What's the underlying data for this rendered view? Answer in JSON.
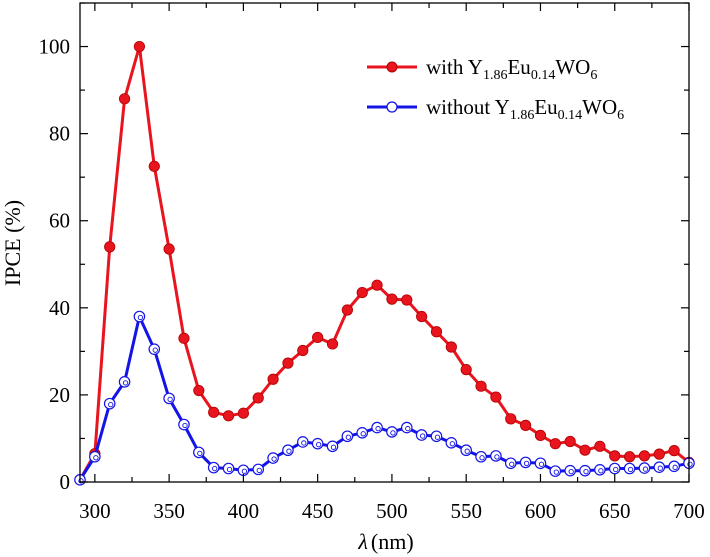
{
  "chart_data": {
    "type": "line",
    "xlabel": {
      "symbol": "λ",
      "unit": "(nm)"
    },
    "ylabel": "IPCE (%)",
    "xlim": [
      290,
      700
    ],
    "ylim": [
      0,
      110
    ],
    "xticks": [
      300,
      350,
      400,
      450,
      500,
      550,
      600,
      650,
      700
    ],
    "yticks": [
      0,
      20,
      40,
      60,
      80,
      100
    ],
    "grid": false,
    "legend_position": "top-right",
    "series": [
      {
        "name": "with Y1.86Eu0.14WO6",
        "legend": {
          "prefix": "with Y",
          "sub1": "1.86",
          "mid": "Eu",
          "sub2": "0.14",
          "suffix": "WO",
          "sub3": "6"
        },
        "color": "#e8141e",
        "marker": "filled-circle",
        "x": [
          290,
          300,
          310,
          320,
          330,
          340,
          350,
          360,
          370,
          380,
          390,
          400,
          410,
          420,
          430,
          440,
          450,
          460,
          470,
          480,
          490,
          500,
          510,
          520,
          530,
          540,
          550,
          560,
          570,
          580,
          590,
          600,
          610,
          620,
          630,
          640,
          650,
          660,
          670,
          680,
          690,
          700
        ],
        "values": [
          0.5,
          6.5,
          54,
          88,
          100,
          72.5,
          53.5,
          33,
          21,
          16,
          15.2,
          15.8,
          19.3,
          23.6,
          27.3,
          30.2,
          33.2,
          31.7,
          39.5,
          43.5,
          45.2,
          42,
          41.8,
          38,
          34.5,
          31,
          25.8,
          22,
          19.5,
          14.5,
          13,
          10.7,
          8.8,
          9.3,
          7.3,
          8.2,
          6,
          5.8,
          6,
          6.4,
          7.2,
          4.5
        ]
      },
      {
        "name": "without Y1.86Eu0.14WO6",
        "legend": {
          "prefix": "without Y",
          "sub1": "1.86",
          "mid": "Eu",
          "sub2": "0.14",
          "suffix": "WO",
          "sub3": "6"
        },
        "color": "#1414e6",
        "marker": "open-circle",
        "x": [
          290,
          300,
          310,
          320,
          330,
          340,
          350,
          360,
          370,
          380,
          390,
          400,
          410,
          420,
          430,
          440,
          450,
          460,
          470,
          480,
          490,
          500,
          510,
          520,
          530,
          540,
          550,
          560,
          570,
          580,
          590,
          600,
          610,
          620,
          630,
          640,
          650,
          660,
          670,
          680,
          690,
          700
        ],
        "values": [
          0.5,
          5.8,
          18,
          23,
          38,
          30.5,
          19.2,
          13.2,
          6.8,
          3.3,
          3.1,
          2.7,
          2.9,
          5.5,
          7.3,
          9.2,
          8.8,
          8.2,
          10.5,
          11.3,
          12.5,
          11.5,
          12.5,
          10.8,
          10.5,
          9,
          7.3,
          5.8,
          6,
          4.3,
          4.5,
          4.3,
          2.5,
          2.6,
          2.6,
          2.8,
          3.1,
          3.1,
          3.2,
          3.4,
          3.6,
          4.3
        ]
      }
    ]
  }
}
